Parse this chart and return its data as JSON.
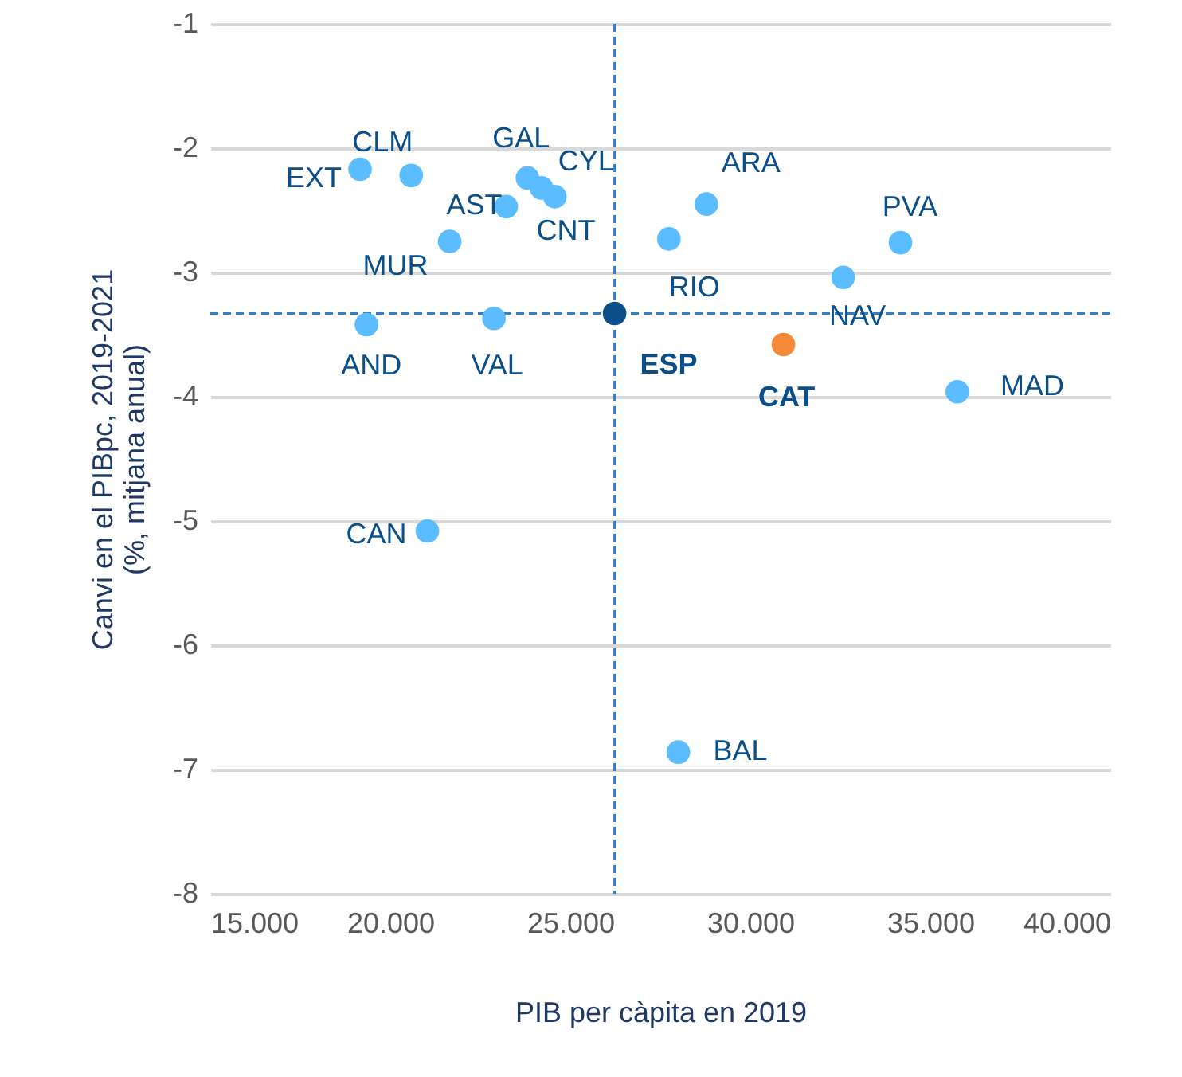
{
  "chart_data": {
    "type": "scatter",
    "xlabel": "PIB per càpita en 2019",
    "ylabel": "Canvi  en el PIBpc, 2019-2021\n(%, mitjana anual)",
    "marker": "circle",
    "grid": "y",
    "xlim": [
      15000,
      40000
    ],
    "xticks": [
      {
        "value": 15000,
        "label": "15.000"
      },
      {
        "value": 20000,
        "label": "20.000"
      },
      {
        "value": 25000,
        "label": "25.000"
      },
      {
        "value": 30000,
        "label": "30.000"
      },
      {
        "value": 35000,
        "label": "35.000"
      },
      {
        "value": 40000,
        "label": "40.000"
      }
    ],
    "ylim": [
      -8,
      -1
    ],
    "yticks": [
      -8,
      -7,
      -6,
      -5,
      -4,
      -3,
      -2,
      -1
    ],
    "series": [
      {
        "color": "#5bbcff",
        "x": [
          19160,
          20580,
          23810,
          24200,
          24570,
          23220,
          21650,
          19340,
          22880,
          27740,
          28780,
          32580,
          34170,
          35750,
          21030,
          28000
        ],
        "values": [
          -2.17,
          -2.22,
          -2.24,
          -2.32,
          -2.39,
          -2.47,
          -2.75,
          -3.42,
          -3.37,
          -2.73,
          -2.45,
          -3.04,
          -2.76,
          -3.96,
          -5.08,
          -6.86
        ]
      },
      {
        "color": "#f58a3a",
        "x": [
          30920
        ],
        "values": [
          -3.58
        ]
      },
      {
        "color": "#0b4f8a",
        "x": [
          26230
        ],
        "values": [
          -3.33
        ]
      }
    ],
    "annotations": [
      {
        "text": "EXT",
        "x": 19160,
        "y": -2.17
      },
      {
        "text": "CLM",
        "x": 20580,
        "y": -2.22
      },
      {
        "text": "GAL",
        "x": 23810,
        "y": -2.24
      },
      {
        "text": "CYL",
        "x": 24200,
        "y": -2.32
      },
      {
        "text": "CNT",
        "x": 24570,
        "y": -2.39
      },
      {
        "text": "AST",
        "x": 23220,
        "y": -2.47
      },
      {
        "text": "MUR",
        "x": 21650,
        "y": -2.75
      },
      {
        "text": "AND",
        "x": 19340,
        "y": -3.42
      },
      {
        "text": "VAL",
        "x": 22880,
        "y": -3.37
      },
      {
        "text": "RIO",
        "x": 27740,
        "y": -2.73
      },
      {
        "text": "ARA",
        "x": 28780,
        "y": -2.45
      },
      {
        "text": "NAV",
        "x": 32580,
        "y": -3.04
      },
      {
        "text": "PVA",
        "x": 34170,
        "y": -2.76
      },
      {
        "text": "MAD",
        "x": 35750,
        "y": -3.96
      },
      {
        "text": "CAN",
        "x": 21030,
        "y": -5.08
      },
      {
        "text": "BAL",
        "x": 28000,
        "y": -6.86
      },
      {
        "text": "CAT",
        "x": 30920,
        "y": -3.58
      },
      {
        "text": "ESP",
        "x": 26230,
        "y": -3.33
      }
    ],
    "ref_lines": [
      {
        "axis": "x",
        "value": 26230,
        "color": "#2b7fd0",
        "line_style": "dashed"
      },
      {
        "axis": "y",
        "value": -3.33,
        "color": "#2b7fd0",
        "line_style": "dashed"
      }
    ]
  }
}
